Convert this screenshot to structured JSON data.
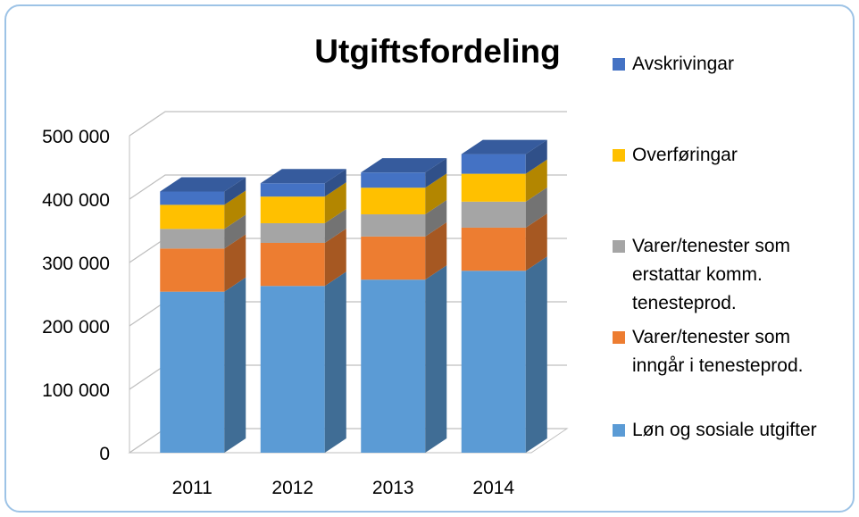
{
  "chart_data": {
    "type": "bar3d_stacked",
    "title": "Utgiftsfordeling",
    "categories": [
      "2011",
      "2012",
      "2013",
      "2014"
    ],
    "series": [
      {
        "name": "Løn og sosiale utgifter",
        "color": "#5b9bd5",
        "values": [
          254000,
          263000,
          273000,
          287000
        ]
      },
      {
        "name": "Varer/tenester som inngår i tenesteprod.",
        "color": "#ed7d31",
        "values": [
          68000,
          68000,
          68000,
          68000
        ]
      },
      {
        "name": "Varer/tenester som erstattar komm. tenesteprod.",
        "color": "#a5a5a5",
        "values": [
          31000,
          31000,
          35000,
          41000
        ]
      },
      {
        "name": "Overføringar",
        "color": "#ffc000",
        "values": [
          38000,
          42000,
          42000,
          44000
        ]
      },
      {
        "name": "Avskrivingar",
        "color": "#4472c4",
        "values": [
          21000,
          21000,
          24000,
          31000
        ]
      }
    ],
    "ylim": [
      0,
      500000
    ],
    "yticks": [
      {
        "value": 0,
        "label": "0"
      },
      {
        "value": 100000,
        "label": "100 000"
      },
      {
        "value": 200000,
        "label": "200 000"
      },
      {
        "value": 300000,
        "label": "300 000"
      },
      {
        "value": 400000,
        "label": "400 000"
      },
      {
        "value": 500000,
        "label": "500 000"
      }
    ],
    "grid": true,
    "legend": "right"
  }
}
